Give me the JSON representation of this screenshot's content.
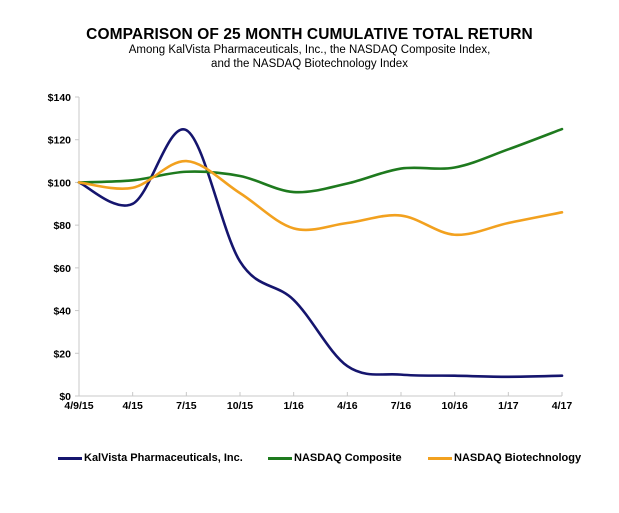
{
  "chart_data": {
    "type": "line",
    "title": "COMPARISON OF 25 MONTH CUMULATIVE TOTAL RETURN",
    "subtitle_lines": [
      "Among KalVista Pharmaceuticals, Inc., the NASDAQ Composite Index,",
      "and the NASDAQ Biotechnology Index"
    ],
    "xlabel": "",
    "ylabel": "",
    "categories": [
      "4/9/15",
      "4/15",
      "7/15",
      "10/15",
      "1/16",
      "4/16",
      "7/16",
      "10/16",
      "1/17",
      "4/17"
    ],
    "ylim": [
      0,
      140
    ],
    "yticks": [
      0,
      20,
      40,
      60,
      80,
      100,
      120,
      140
    ],
    "ytick_labels": [
      "$0",
      "$20",
      "$40",
      "$60",
      "$80",
      "$100",
      "$120",
      "$140"
    ],
    "grid": false,
    "legend_position": "bottom",
    "series": [
      {
        "name": "KalVista Pharmaceuticals, Inc.",
        "color": "#15156e",
        "values": [
          100,
          90,
          124.5,
          63,
          45,
          14,
          10,
          9.5,
          9,
          9.5
        ]
      },
      {
        "name": "NASDAQ Composite",
        "color": "#1e7a1e",
        "values": [
          100,
          101,
          105,
          103,
          95.5,
          99.5,
          106.5,
          107,
          115.5,
          125
        ]
      },
      {
        "name": "NASDAQ Biotechnology",
        "color": "#f2a11f",
        "values": [
          100,
          97.5,
          110,
          95,
          78.5,
          81,
          84.5,
          75.5,
          81,
          86
        ]
      }
    ]
  }
}
